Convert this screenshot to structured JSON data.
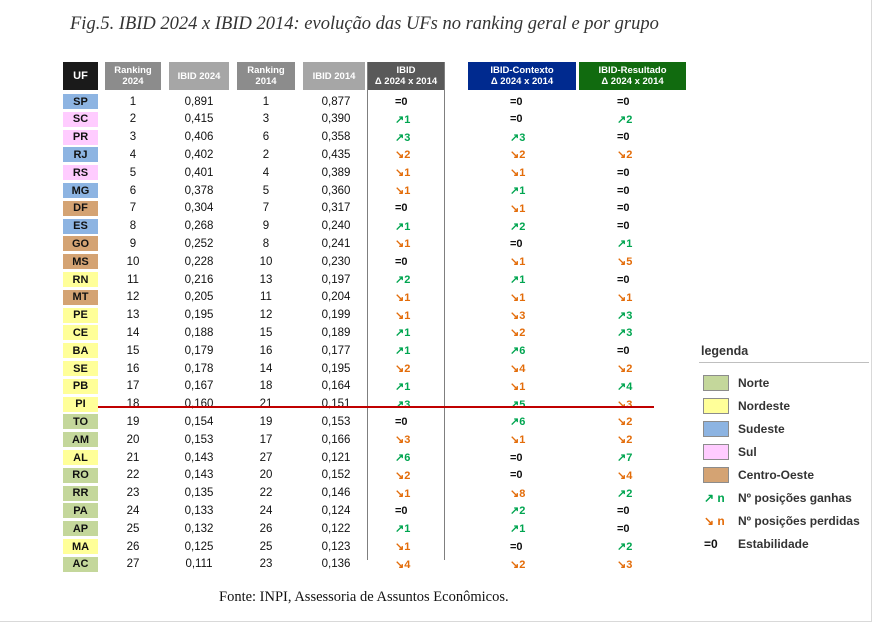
{
  "figure": {
    "title": "Fig.5. IBID 2024 x IBID 2014: evolução das UFs no ranking geral e por grupo",
    "source": "Fonte: INPI, Assessoria de Assuntos Econômicos."
  },
  "colors": {
    "Norte": "#c4d79b",
    "Nordeste": "#ffff99",
    "Sudeste": "#8db4e2",
    "Sul": "#ffccff",
    "Centro-Oeste": "#d4a373",
    "up": "#00a550",
    "down": "#e36c09",
    "divider": "#c00000"
  },
  "headers": {
    "uf": "UF",
    "rank2024": "Ranking 2024",
    "ibid2024": "IBID 2024",
    "rank2014": "Ranking 2014",
    "ibid2014": "IBID 2014",
    "delta_ibid_1": "IBID",
    "delta_ibid_2": "Δ 2024 x 2014",
    "delta_ctx_1": "IBID-Contexto",
    "delta_ctx_2": "Δ 2024 x 2014",
    "delta_res_1": "IBID-Resultado",
    "delta_res_2": "Δ 2024 x 2014"
  },
  "rows": [
    {
      "uf": "SP",
      "region": "Sudeste",
      "rank2024": "1",
      "ibid2024": "0,891",
      "rank2014": "1",
      "ibid2014": "0,877",
      "d_ibid": "=0",
      "d_ctx": "=0",
      "d_res": "=0"
    },
    {
      "uf": "SC",
      "region": "Sul",
      "rank2024": "2",
      "ibid2024": "0,415",
      "rank2014": "3",
      "ibid2014": "0,390",
      "d_ibid": "↗1",
      "d_ctx": "=0",
      "d_res": "↗2"
    },
    {
      "uf": "PR",
      "region": "Sul",
      "rank2024": "3",
      "ibid2024": "0,406",
      "rank2014": "6",
      "ibid2014": "0,358",
      "d_ibid": "↗3",
      "d_ctx": "↗3",
      "d_res": "=0"
    },
    {
      "uf": "RJ",
      "region": "Sudeste",
      "rank2024": "4",
      "ibid2024": "0,402",
      "rank2014": "2",
      "ibid2014": "0,435",
      "d_ibid": "↘2",
      "d_ctx": "↘2",
      "d_res": "↘2"
    },
    {
      "uf": "RS",
      "region": "Sul",
      "rank2024": "5",
      "ibid2024": "0,401",
      "rank2014": "4",
      "ibid2014": "0,389",
      "d_ibid": "↘1",
      "d_ctx": "↘1",
      "d_res": "=0"
    },
    {
      "uf": "MG",
      "region": "Sudeste",
      "rank2024": "6",
      "ibid2024": "0,378",
      "rank2014": "5",
      "ibid2014": "0,360",
      "d_ibid": "↘1",
      "d_ctx": "↗1",
      "d_res": "=0"
    },
    {
      "uf": "DF",
      "region": "Centro-Oeste",
      "rank2024": "7",
      "ibid2024": "0,304",
      "rank2014": "7",
      "ibid2014": "0,317",
      "d_ibid": "=0",
      "d_ctx": "↘1",
      "d_res": "=0"
    },
    {
      "uf": "ES",
      "region": "Sudeste",
      "rank2024": "8",
      "ibid2024": "0,268",
      "rank2014": "9",
      "ibid2014": "0,240",
      "d_ibid": "↗1",
      "d_ctx": "↗2",
      "d_res": "=0"
    },
    {
      "uf": "GO",
      "region": "Centro-Oeste",
      "rank2024": "9",
      "ibid2024": "0,252",
      "rank2014": "8",
      "ibid2014": "0,241",
      "d_ibid": "↘1",
      "d_ctx": "=0",
      "d_res": "↗1"
    },
    {
      "uf": "MS",
      "region": "Centro-Oeste",
      "rank2024": "10",
      "ibid2024": "0,228",
      "rank2014": "10",
      "ibid2014": "0,230",
      "d_ibid": "=0",
      "d_ctx": "↘1",
      "d_res": "↘5"
    },
    {
      "uf": "RN",
      "region": "Nordeste",
      "rank2024": "11",
      "ibid2024": "0,216",
      "rank2014": "13",
      "ibid2014": "0,197",
      "d_ibid": "↗2",
      "d_ctx": "↗1",
      "d_res": "=0"
    },
    {
      "uf": "MT",
      "region": "Centro-Oeste",
      "rank2024": "12",
      "ibid2024": "0,205",
      "rank2014": "11",
      "ibid2014": "0,204",
      "d_ibid": "↘1",
      "d_ctx": "↘1",
      "d_res": "↘1"
    },
    {
      "uf": "PE",
      "region": "Nordeste",
      "rank2024": "13",
      "ibid2024": "0,195",
      "rank2014": "12",
      "ibid2014": "0,199",
      "d_ibid": "↘1",
      "d_ctx": "↘3",
      "d_res": "↗3"
    },
    {
      "uf": "CE",
      "region": "Nordeste",
      "rank2024": "14",
      "ibid2024": "0,188",
      "rank2014": "15",
      "ibid2014": "0,189",
      "d_ibid": "↗1",
      "d_ctx": "↘2",
      "d_res": "↗3"
    },
    {
      "uf": "BA",
      "region": "Nordeste",
      "rank2024": "15",
      "ibid2024": "0,179",
      "rank2014": "16",
      "ibid2014": "0,177",
      "d_ibid": "↗1",
      "d_ctx": "↗6",
      "d_res": "=0"
    },
    {
      "uf": "SE",
      "region": "Nordeste",
      "rank2024": "16",
      "ibid2024": "0,178",
      "rank2014": "14",
      "ibid2014": "0,195",
      "d_ibid": "↘2",
      "d_ctx": "↘4",
      "d_res": "↘2"
    },
    {
      "uf": "PB",
      "region": "Nordeste",
      "rank2024": "17",
      "ibid2024": "0,167",
      "rank2014": "18",
      "ibid2014": "0,164",
      "d_ibid": "↗1",
      "d_ctx": "↘1",
      "d_res": "↗4"
    },
    {
      "uf": "PI",
      "region": "Nordeste",
      "rank2024": "18",
      "ibid2024": "0,160",
      "rank2014": "21",
      "ibid2014": "0,151",
      "d_ibid": "↗3",
      "d_ctx": "↗5",
      "d_res": "↘3"
    },
    {
      "uf": "TO",
      "region": "Norte",
      "rank2024": "19",
      "ibid2024": "0,154",
      "rank2014": "19",
      "ibid2014": "0,153",
      "d_ibid": "=0",
      "d_ctx": "↗6",
      "d_res": "↘2"
    },
    {
      "uf": "AM",
      "region": "Norte",
      "rank2024": "20",
      "ibid2024": "0,153",
      "rank2014": "17",
      "ibid2014": "0,166",
      "d_ibid": "↘3",
      "d_ctx": "↘1",
      "d_res": "↘2"
    },
    {
      "uf": "AL",
      "region": "Nordeste",
      "rank2024": "21",
      "ibid2024": "0,143",
      "rank2014": "27",
      "ibid2014": "0,121",
      "d_ibid": "↗6",
      "d_ctx": "=0",
      "d_res": "↗7"
    },
    {
      "uf": "RO",
      "region": "Norte",
      "rank2024": "22",
      "ibid2024": "0,143",
      "rank2014": "20",
      "ibid2014": "0,152",
      "d_ibid": "↘2",
      "d_ctx": "=0",
      "d_res": "↘4"
    },
    {
      "uf": "RR",
      "region": "Norte",
      "rank2024": "23",
      "ibid2024": "0,135",
      "rank2014": "22",
      "ibid2014": "0,146",
      "d_ibid": "↘1",
      "d_ctx": "↘8",
      "d_res": "↗2"
    },
    {
      "uf": "PA",
      "region": "Norte",
      "rank2024": "24",
      "ibid2024": "0,133",
      "rank2014": "24",
      "ibid2014": "0,124",
      "d_ibid": "=0",
      "d_ctx": "↗2",
      "d_res": "=0"
    },
    {
      "uf": "AP",
      "region": "Norte",
      "rank2024": "25",
      "ibid2024": "0,132",
      "rank2014": "26",
      "ibid2014": "0,122",
      "d_ibid": "↗1",
      "d_ctx": "↗1",
      "d_res": "=0"
    },
    {
      "uf": "MA",
      "region": "Nordeste",
      "rank2024": "26",
      "ibid2024": "0,125",
      "rank2014": "25",
      "ibid2014": "0,123",
      "d_ibid": "↘1",
      "d_ctx": "=0",
      "d_res": "↗2"
    },
    {
      "uf": "AC",
      "region": "Norte",
      "rank2024": "27",
      "ibid2024": "0,111",
      "rank2014": "23",
      "ibid2014": "0,136",
      "d_ibid": "↘4",
      "d_ctx": "↘2",
      "d_res": "↘3"
    }
  ],
  "legend": {
    "title": "legenda",
    "regions": [
      "Norte",
      "Nordeste",
      "Sudeste",
      "Sul",
      "Centro-Oeste"
    ],
    "up_symbol": "↗ n",
    "up_label": "Nº posições ganhas",
    "down_symbol": "↘ n",
    "down_label": "Nº posições perdidas",
    "eq_symbol": "=0",
    "eq_label": "Estabilidade"
  }
}
